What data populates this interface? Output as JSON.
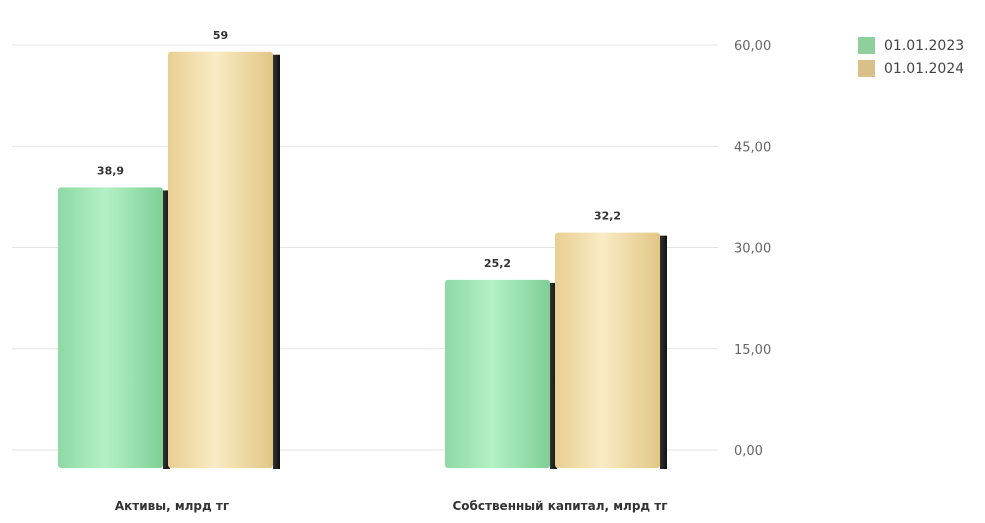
{
  "chart_data": {
    "type": "bar",
    "categories": [
      "Активы, млрд тг",
      "Собственный капитал, млрд тг"
    ],
    "series": [
      {
        "name": "01.01.2023",
        "values": [
          38.9,
          25.2
        ],
        "labels": [
          "38,9",
          "25,2"
        ]
      },
      {
        "name": "01.01.2024",
        "values": [
          59,
          32.2
        ],
        "labels": [
          "59",
          "32,2"
        ]
      }
    ],
    "ylim": [
      0,
      60
    ],
    "yticks": [
      0,
      15,
      30,
      45,
      60
    ],
    "ytick_labels": [
      "0,00",
      "15,00",
      "30,00",
      "45,00",
      "60,00"
    ],
    "axis_position": "right",
    "grid": true,
    "legend_position": "top-right",
    "colors": [
      "#9fe5b3",
      "#f2dca6"
    ]
  }
}
